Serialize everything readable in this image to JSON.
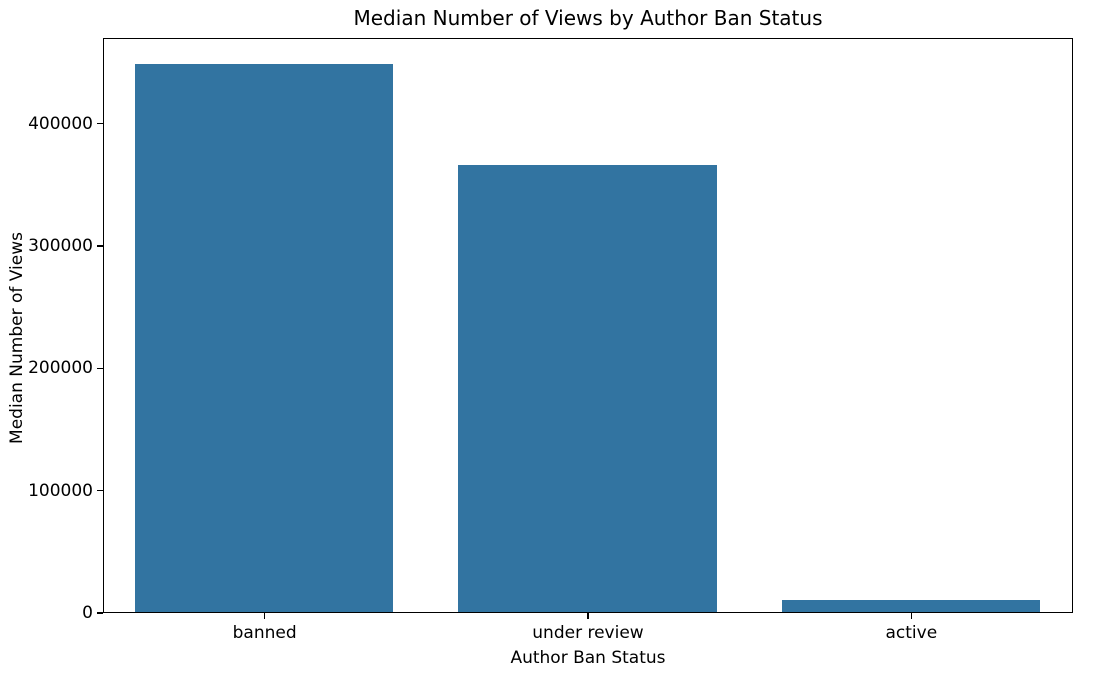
{
  "figure": {
    "background": "#ffffff",
    "text_color": "#000000"
  },
  "chart_data": {
    "type": "bar",
    "title": "Median Number of Views by Author Ban Status",
    "xlabel": "Author Ban Status",
    "ylabel": "Median Number of Views",
    "categories": [
      "banned",
      "under review",
      "active"
    ],
    "values": [
      448000,
      365000,
      9800
    ],
    "bar_color": "#3274a1",
    "ylim": [
      0,
      470000
    ],
    "yticks": [
      0,
      100000,
      200000,
      300000,
      400000
    ],
    "ytick_labels": [
      "0",
      "100000",
      "200000",
      "300000",
      "400000"
    ],
    "bar_width_fraction": 0.8,
    "grid": false,
    "legend_position": "none"
  }
}
